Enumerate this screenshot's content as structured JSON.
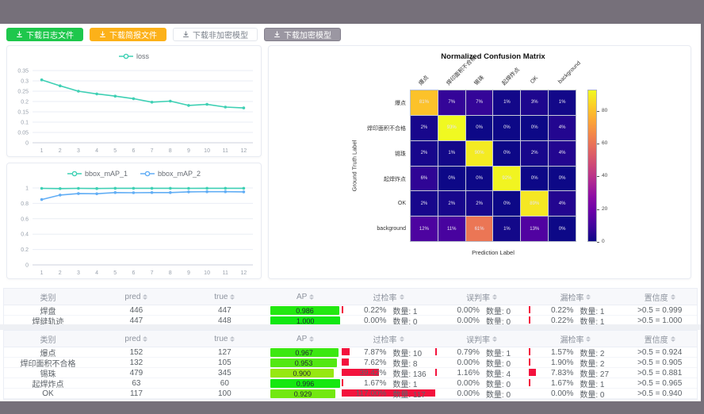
{
  "toolbar": {
    "buttons": [
      {
        "label": "下载日志文件",
        "style": "green"
      },
      {
        "label": "下载简报文件",
        "style": "orange"
      },
      {
        "label": "下载非加密模型",
        "style": "plain"
      },
      {
        "label": "下载加密模型",
        "style": "gray"
      }
    ]
  },
  "colors": {
    "frame": "#76707a",
    "accent_green": "#1ec74c",
    "accent_orange": "#fcb119",
    "gray_button": "#9b97a2",
    "teal_series": "#3ed0b4",
    "blue_series": "#62aef5",
    "rate_bar_red": "#f3123d"
  },
  "charts": {
    "loss": {
      "type": "line",
      "x": [
        1,
        2,
        3,
        4,
        5,
        6,
        7,
        8,
        9,
        10,
        11,
        12
      ],
      "series": [
        {
          "name": "loss",
          "color": "#3ed0b4",
          "values": [
            0.305,
            0.276,
            0.25,
            0.237,
            0.226,
            0.214,
            0.197,
            0.202,
            0.181,
            0.186,
            0.173,
            0.169
          ]
        }
      ],
      "yticks": [
        0,
        0.05,
        0.1,
        0.15,
        0.2,
        0.25,
        0.3,
        0.35
      ],
      "ylim": [
        0,
        0.35
      ],
      "grid": true,
      "legend_position": "top"
    },
    "map": {
      "type": "line",
      "x": [
        1,
        2,
        3,
        4,
        5,
        6,
        7,
        8,
        9,
        10,
        11,
        12
      ],
      "series": [
        {
          "name": "bbox_mAP_1",
          "color": "#3ed0b4",
          "values": [
            0.995,
            0.992,
            0.995,
            0.993,
            0.996,
            0.996,
            0.996,
            0.996,
            0.995,
            0.996,
            0.996,
            0.996
          ]
        },
        {
          "name": "bbox_mAP_2",
          "color": "#62aef5",
          "values": [
            0.85,
            0.908,
            0.927,
            0.925,
            0.94,
            0.938,
            0.94,
            0.94,
            0.95,
            0.952,
            0.952,
            0.95
          ]
        }
      ],
      "yticks": [
        0,
        0.2,
        0.4,
        0.6,
        0.8,
        1
      ],
      "ylim": [
        0,
        1
      ],
      "grid": true,
      "legend_position": "top"
    }
  },
  "confusion_matrix": {
    "title": "Normalized Confusion Matrix",
    "xlabel": "Prediction Label",
    "ylabel": "Ground Truth Label",
    "labels": [
      "爆点",
      "焊印面积不合格",
      "锡珠",
      "起焊炸点",
      "OK",
      "background"
    ],
    "unit": "%",
    "vmax": 93,
    "rows": [
      [
        81,
        7,
        7,
        1,
        3,
        1
      ],
      [
        2,
        93,
        0,
        0,
        0,
        4
      ],
      [
        2,
        1,
        90,
        0,
        2,
        4
      ],
      [
        6,
        0,
        0,
        92,
        0,
        0
      ],
      [
        2,
        2,
        2,
        0,
        89,
        4
      ],
      [
        12,
        11,
        61,
        1,
        13,
        0
      ]
    ],
    "colorbar_ticks": [
      0,
      20,
      40,
      60,
      80
    ]
  },
  "table_columns": {
    "cls": "类别",
    "pred": "pred",
    "true": "true",
    "ap": "AP",
    "over": "过检率",
    "mis": "误判率",
    "miss": "漏检率",
    "conf": "置信度",
    "count_label": "数量"
  },
  "tables": [
    {
      "rows": [
        {
          "cls": "焊盘",
          "pred": 446,
          "true": 447,
          "ap": 0.986,
          "over": {
            "pct": 0.22,
            "count": 1
          },
          "mis": {
            "pct": 0.0,
            "count": 0
          },
          "miss": {
            "pct": 0.22,
            "count": 1
          },
          "conf": ">0.5 = 0.999"
        },
        {
          "cls": "焊缝轨迹",
          "pred": 447,
          "true": 448,
          "ap": 1.0,
          "over": {
            "pct": 0.0,
            "count": 0
          },
          "mis": {
            "pct": 0.0,
            "count": 0
          },
          "miss": {
            "pct": 0.22,
            "count": 1
          },
          "conf": ">0.5 = 1.000"
        }
      ]
    },
    {
      "rows": [
        {
          "cls": "爆点",
          "pred": 152,
          "true": 127,
          "ap": 0.967,
          "over": {
            "pct": 7.87,
            "count": 10
          },
          "mis": {
            "pct": 0.79,
            "count": 1
          },
          "miss": {
            "pct": 1.57,
            "count": 2
          },
          "conf": ">0.5 = 0.924"
        },
        {
          "cls": "焊印面积不合格",
          "pred": 132,
          "true": 105,
          "ap": 0.953,
          "over": {
            "pct": 7.62,
            "count": 8
          },
          "mis": {
            "pct": 0.0,
            "count": 0
          },
          "miss": {
            "pct": 1.9,
            "count": 2
          },
          "conf": ">0.5 = 0.905"
        },
        {
          "cls": "锡珠",
          "pred": 479,
          "true": 345,
          "ap": 0.9,
          "over": {
            "pct": 39.42,
            "count": 136
          },
          "mis": {
            "pct": 1.16,
            "count": 4
          },
          "miss": {
            "pct": 7.83,
            "count": 27
          },
          "conf": ">0.5 = 0.881"
        },
        {
          "cls": "起焊炸点",
          "pred": 63,
          "true": 60,
          "ap": 0.996,
          "over": {
            "pct": 1.67,
            "count": 1
          },
          "mis": {
            "pct": 0.0,
            "count": 0
          },
          "miss": {
            "pct": 1.67,
            "count": 1
          },
          "conf": ">0.5 = 0.965"
        },
        {
          "cls": "OK",
          "pred": 117,
          "true": 100,
          "ap": 0.929,
          "over": {
            "pct": 117.0,
            "count": 117
          },
          "mis": {
            "pct": 0.0,
            "count": 0
          },
          "miss": {
            "pct": 0.0,
            "count": 0
          },
          "conf": ">0.5 = 0.940"
        }
      ]
    }
  ]
}
